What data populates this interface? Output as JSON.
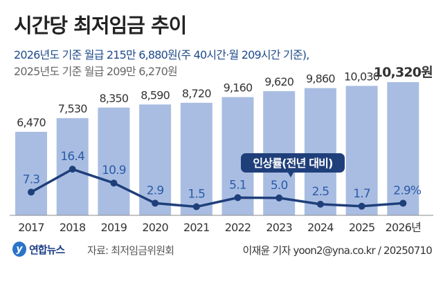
{
  "title": "시간당 최저임금 추이",
  "subtitle_line1": "2026년도 기준 월급 215만 6,880원(주 40시간·월 209시간 기준),",
  "subtitle_line2": "2025년도 기준 월급 209만 6,270원",
  "colors": {
    "bar": "#a9bde2",
    "line": "#1f3f7a",
    "rate_label": "#2a5aa8",
    "bubble": "#1f3f7a"
  },
  "chart_data": {
    "type": "bar+line",
    "categories": [
      "2017",
      "2018",
      "2019",
      "2020",
      "2021",
      "2022",
      "2023",
      "2024",
      "2025",
      "2026년"
    ],
    "series": [
      {
        "name": "",
        "type": "bar",
        "values": [
          6470,
          7530,
          8350,
          8590,
          8720,
          9160,
          9620,
          9860,
          10030,
          10320
        ],
        "labels": [
          "6,470",
          "7,530",
          "8,350",
          "8,590",
          "8,720",
          "9,160",
          "9,620",
          "9,860",
          "10,030",
          "10,320원"
        ]
      },
      {
        "name": "인상률(전년 대비)",
        "type": "line",
        "values": [
          7.3,
          16.4,
          10.9,
          2.9,
          1.5,
          5.1,
          5.0,
          2.5,
          1.7,
          2.9
        ],
        "labels": [
          "7.3",
          "16.4",
          "10.9",
          "2.9",
          "1.5",
          "5.1",
          "5.0",
          "2.5",
          "1.7",
          "2.9%"
        ]
      }
    ],
    "ylim": [
      0,
      10320
    ],
    "grid": false
  },
  "footer": {
    "logo": "연합뉴스",
    "source": "자료: 최저임금위원회",
    "credit": "이재윤 기자 yoon2@yna.co.kr / 20250710"
  }
}
